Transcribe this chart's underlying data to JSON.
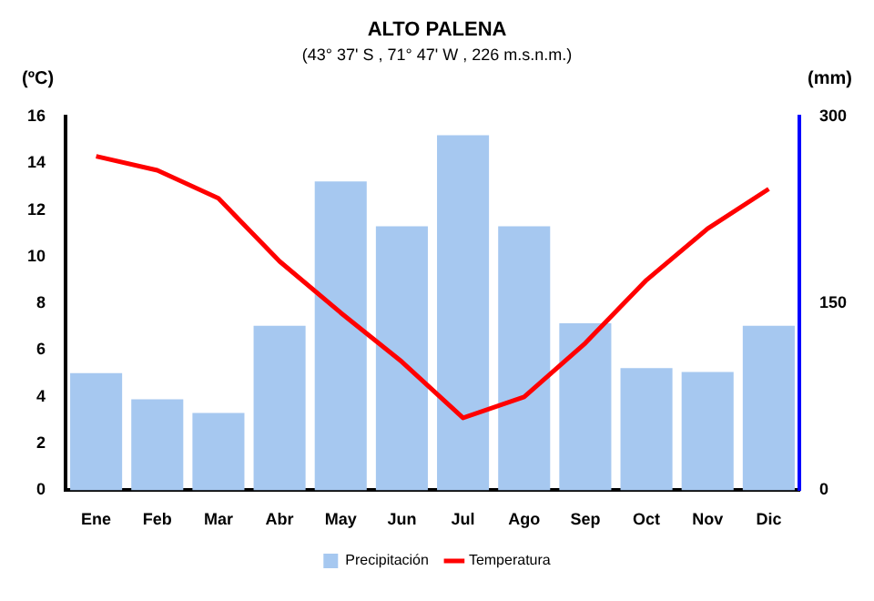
{
  "chart_data": {
    "type": "bar",
    "title": "ALTO PALENA",
    "subtitle": "(43° 37' S , 71° 47' W , 226 m.s.n.m.)",
    "ylabel": "(ºC)",
    "y2label": "(mm)",
    "categories": [
      "Ene",
      "Feb",
      "Mar",
      "Abr",
      "May",
      "Jun",
      "Jul",
      "Ago",
      "Sep",
      "Oct",
      "Nov",
      "Dic"
    ],
    "series": [
      {
        "name": "Precipitación",
        "axis": "y2",
        "color": "#a6c8f0",
        "values": [
          94,
          73,
          62,
          132,
          248,
          212,
          285,
          212,
          134,
          98,
          95,
          132
        ]
      },
      {
        "name": "Temperatura",
        "type": "line",
        "color": "#ff0000",
        "values": [
          14.3,
          13.7,
          12.5,
          9.8,
          7.6,
          5.5,
          3.1,
          4.0,
          6.3,
          9.0,
          11.2,
          12.9
        ]
      }
    ],
    "ylim": [
      0,
      16
    ],
    "yticks": [
      0,
      2,
      4,
      6,
      8,
      10,
      12,
      14,
      16
    ],
    "y2lim": [
      0,
      300
    ],
    "y2ticks": [
      0,
      150,
      300
    ],
    "grid": false,
    "legend": "bottom",
    "marker": "none",
    "line_style": "solid"
  }
}
